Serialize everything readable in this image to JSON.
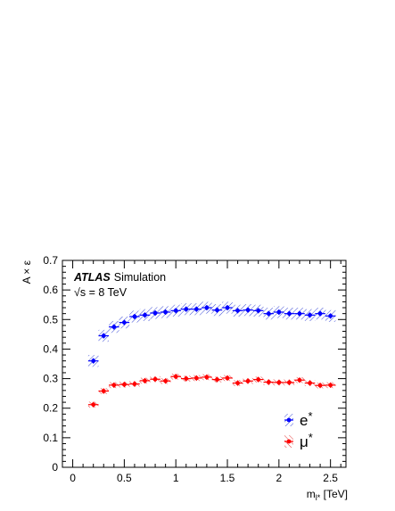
{
  "chart_data": {
    "type": "scatter",
    "title": "",
    "xlabel": "m_l* [TeV]",
    "xlabel_main": "m",
    "xlabel_sub": "l*",
    "xlabel_unit": " [TeV]",
    "ylabel": "A × ε",
    "xlim": [
      -0.1,
      2.65
    ],
    "ylim": [
      0,
      0.7
    ],
    "x_ticks": [
      0,
      0.5,
      1,
      1.5,
      2,
      2.5
    ],
    "x_tick_labels": [
      "0",
      "0.5",
      "1",
      "1.5",
      "2",
      "2.5"
    ],
    "y_ticks": [
      0,
      0.1,
      0.2,
      0.3,
      0.4,
      0.5,
      0.6,
      0.7
    ],
    "y_tick_labels": [
      "0",
      "0.1",
      "0.2",
      "0.3",
      "0.4",
      "0.5",
      "0.6",
      "0.7"
    ],
    "grid": false,
    "legend_position": "bottom-right",
    "annotations": {
      "atlas": "ATLAS",
      "simulation": "Simulation",
      "energy": "√s = 8 TeV"
    },
    "x": [
      0.2,
      0.3,
      0.4,
      0.5,
      0.6,
      0.7,
      0.8,
      0.9,
      1.0,
      1.1,
      1.2,
      1.3,
      1.4,
      1.5,
      1.6,
      1.7,
      1.8,
      1.9,
      2.0,
      2.1,
      2.2,
      2.3,
      2.4,
      2.5
    ],
    "series": [
      {
        "name": "e*",
        "color": "#0000ff",
        "hatch": "blue diagonal",
        "values": [
          0.36,
          0.445,
          0.475,
          0.49,
          0.51,
          0.515,
          0.522,
          0.525,
          0.53,
          0.535,
          0.535,
          0.54,
          0.532,
          0.54,
          0.53,
          0.532,
          0.53,
          0.52,
          0.525,
          0.52,
          0.52,
          0.515,
          0.52,
          0.512
        ],
        "band": 0.02
      },
      {
        "name": "μ*",
        "color": "#ff0000",
        "hatch": "red diagonal",
        "values": [
          0.212,
          0.258,
          0.278,
          0.28,
          0.282,
          0.293,
          0.298,
          0.292,
          0.307,
          0.3,
          0.302,
          0.305,
          0.297,
          0.302,
          0.285,
          0.292,
          0.297,
          0.288,
          0.287,
          0.287,
          0.295,
          0.285,
          0.277,
          0.278
        ],
        "band": 0.01
      }
    ],
    "legend": [
      {
        "label_main": "e",
        "label_sup": "*",
        "series": 0
      },
      {
        "label_main": "μ",
        "label_sup": "*",
        "series": 1
      }
    ]
  }
}
